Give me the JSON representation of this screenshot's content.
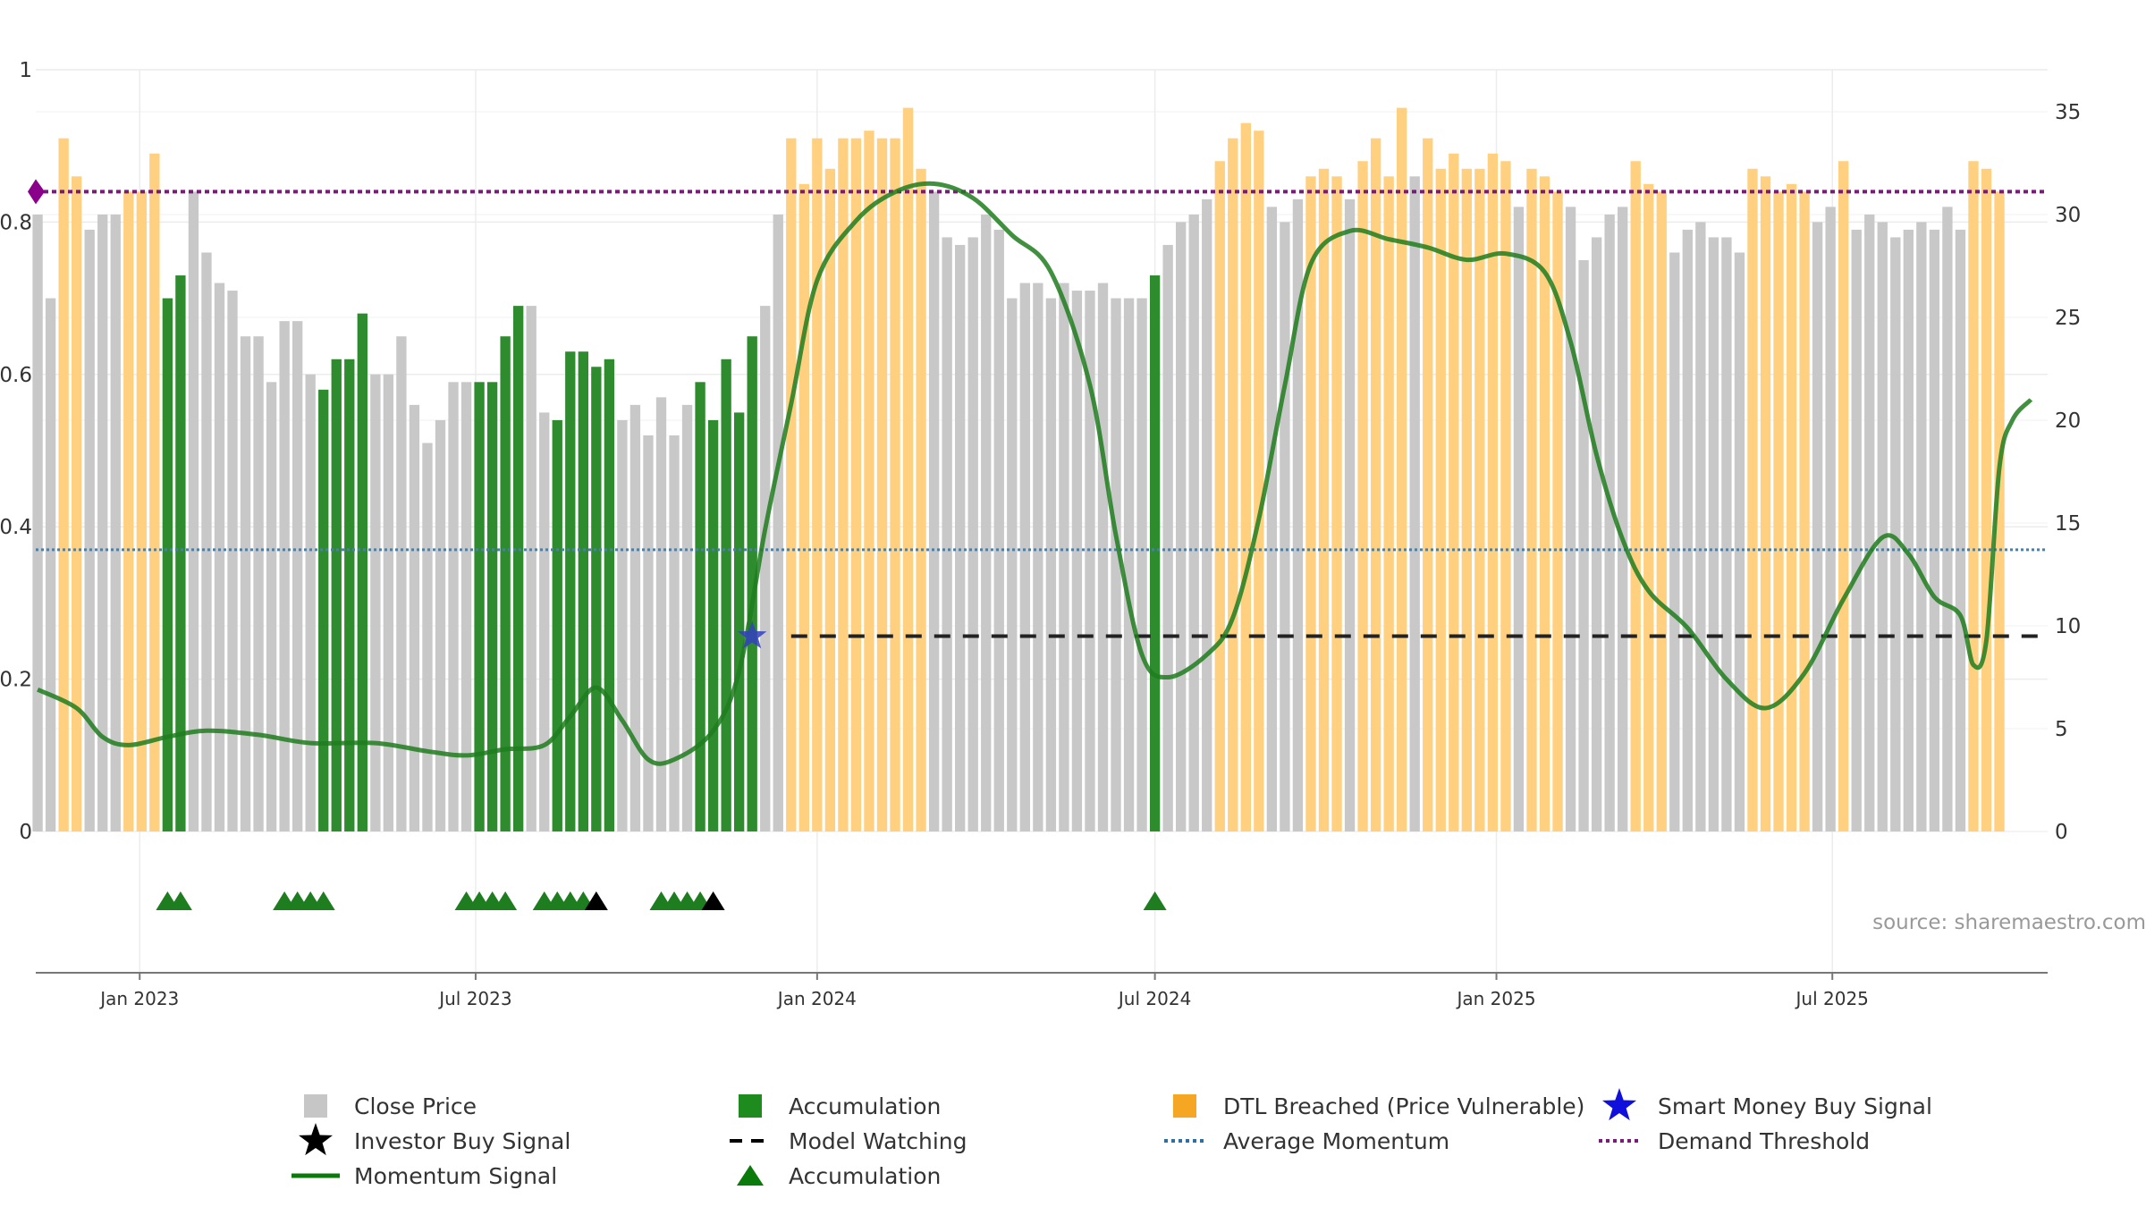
{
  "chart_data": {
    "type": "bar",
    "source_text": "source: sharemaestro.com",
    "left_axis": {
      "ylim": [
        0,
        1
      ],
      "ticks": [
        "0",
        "0.2",
        "0.4",
        "0.6",
        "0.8",
        "1"
      ],
      "values": [
        0,
        0.2,
        0.4,
        0.6,
        0.8,
        1
      ]
    },
    "right_axis": {
      "ylim": [
        0,
        35
      ],
      "ticks": [
        "0",
        "5",
        "10",
        "15",
        "20",
        "25",
        "30",
        "35"
      ],
      "values": [
        0,
        5,
        10,
        15,
        20,
        25,
        30,
        35
      ]
    },
    "x_axis": {
      "start": "2022-11-06",
      "end": "2025-10-25",
      "ticks": [
        {
          "date": "2023-01-01",
          "label": "Jan 2023"
        },
        {
          "date": "2023-07-01",
          "label": "Jul 2023"
        },
        {
          "date": "2024-01-01",
          "label": "Jan 2024"
        },
        {
          "date": "2024-07-01",
          "label": "Jul 2024"
        },
        {
          "date": "2025-01-01",
          "label": "Jan 2025"
        },
        {
          "date": "2025-07-01",
          "label": "Jul 2025"
        }
      ]
    },
    "bars": {
      "first_week": "2022-11-07",
      "values": [
        0.81,
        0.7,
        0.91,
        0.86,
        0.79,
        0.81,
        0.81,
        0.84,
        0.84,
        0.89,
        0.7,
        0.73,
        0.84,
        0.76,
        0.72,
        0.71,
        0.65,
        0.65,
        0.59,
        0.67,
        0.67,
        0.6,
        0.58,
        0.62,
        0.62,
        0.68,
        0.6,
        0.6,
        0.65,
        0.56,
        0.51,
        0.54,
        0.59,
        0.59,
        0.59,
        0.59,
        0.65,
        0.69,
        0.69,
        0.55,
        0.54,
        0.63,
        0.63,
        0.61,
        0.62,
        0.54,
        0.56,
        0.52,
        0.57,
        0.52,
        0.56,
        0.59,
        0.54,
        0.62,
        0.55,
        0.65,
        0.69,
        0.81,
        0.91,
        0.85,
        0.91,
        0.87,
        0.91,
        0.91,
        0.92,
        0.91,
        0.91,
        0.95,
        0.87,
        0.84,
        0.78,
        0.77,
        0.78,
        0.81,
        0.79,
        0.7,
        0.72,
        0.72,
        0.7,
        0.72,
        0.71,
        0.71,
        0.72,
        0.7,
        0.7,
        0.7,
        0.73,
        0.77,
        0.8,
        0.81,
        0.83,
        0.88,
        0.91,
        0.93,
        0.92,
        0.82,
        0.8,
        0.83,
        0.86,
        0.87,
        0.86,
        0.83,
        0.88,
        0.91,
        0.86,
        0.95,
        0.86,
        0.91,
        0.87,
        0.89,
        0.87,
        0.87,
        0.89,
        0.88,
        0.82,
        0.87,
        0.86,
        0.84,
        0.82,
        0.75,
        0.78,
        0.81,
        0.82,
        0.88,
        0.85,
        0.84,
        0.76,
        0.79,
        0.8,
        0.78,
        0.78,
        0.76,
        0.87,
        0.86,
        0.84,
        0.85,
        0.84,
        0.8,
        0.82,
        0.88,
        0.79,
        0.81,
        0.8,
        0.78,
        0.79,
        0.8,
        0.79,
        0.82,
        0.79,
        0.88,
        0.87,
        0.84
      ],
      "signals": [
        "g",
        "g",
        "o",
        "o",
        "g",
        "g",
        "g",
        "o",
        "o",
        "o",
        "a",
        "a",
        "g",
        "g",
        "g",
        "g",
        "g",
        "g",
        "g",
        "g",
        "g",
        "g",
        "a",
        "a",
        "a",
        "a",
        "g",
        "g",
        "g",
        "g",
        "g",
        "g",
        "g",
        "g",
        "a",
        "a",
        "a",
        "a",
        "g",
        "g",
        "a",
        "a",
        "a",
        "a",
        "a",
        "g",
        "g",
        "g",
        "g",
        "g",
        "g",
        "a",
        "a",
        "a",
        "a",
        "a",
        "g",
        "g",
        "o",
        "o",
        "o",
        "o",
        "o",
        "o",
        "o",
        "o",
        "o",
        "o",
        "o",
        "g",
        "g",
        "g",
        "g",
        "g",
        "g",
        "g",
        "g",
        "g",
        "g",
        "g",
        "g",
        "g",
        "g",
        "g",
        "g",
        "g",
        "a",
        "g",
        "g",
        "g",
        "g",
        "o",
        "o",
        "o",
        "o",
        "g",
        "g",
        "g",
        "o",
        "o",
        "o",
        "g",
        "o",
        "o",
        "o",
        "o",
        "g",
        "o",
        "o",
        "o",
        "o",
        "o",
        "o",
        "o",
        "g",
        "o",
        "o",
        "o",
        "g",
        "g",
        "g",
        "g",
        "g",
        "o",
        "o",
        "o",
        "g",
        "g",
        "g",
        "g",
        "g",
        "g",
        "o",
        "o",
        "o",
        "o",
        "o",
        "g",
        "g",
        "o",
        "g",
        "g",
        "g",
        "g",
        "g",
        "g",
        "g",
        "g",
        "g",
        "o",
        "o",
        "o"
      ]
    },
    "momentum_signal": {
      "points": [
        [
          "2022-11-07",
          6.9
        ],
        [
          "2022-11-28",
          6.0
        ],
        [
          "2022-12-12",
          4.6
        ],
        [
          "2022-12-26",
          4.2
        ],
        [
          "2023-01-16",
          4.6
        ],
        [
          "2023-02-06",
          4.9
        ],
        [
          "2023-03-06",
          4.7
        ],
        [
          "2023-04-03",
          4.3
        ],
        [
          "2023-05-08",
          4.3
        ],
        [
          "2023-06-05",
          3.9
        ],
        [
          "2023-06-26",
          3.7
        ],
        [
          "2023-07-17",
          4.0
        ],
        [
          "2023-08-07",
          4.2
        ],
        [
          "2023-08-21",
          5.6
        ],
        [
          "2023-09-04",
          7.0
        ],
        [
          "2023-09-18",
          5.4
        ],
        [
          "2023-10-02",
          3.5
        ],
        [
          "2023-10-16",
          3.5
        ],
        [
          "2023-11-06",
          4.9
        ],
        [
          "2023-11-20",
          7.8
        ],
        [
          "2023-12-04",
          14.7
        ],
        [
          "2023-12-18",
          20.8
        ],
        [
          "2024-01-01",
          26.8
        ],
        [
          "2024-01-22",
          29.7
        ],
        [
          "2024-02-12",
          31.1
        ],
        [
          "2024-03-04",
          31.5
        ],
        [
          "2024-03-25",
          30.8
        ],
        [
          "2024-04-15",
          29.0
        ],
        [
          "2024-05-06",
          27.2
        ],
        [
          "2024-05-27",
          21.7
        ],
        [
          "2024-06-10",
          14.4
        ],
        [
          "2024-06-24",
          8.6
        ],
        [
          "2024-07-08",
          7.5
        ],
        [
          "2024-07-29",
          8.6
        ],
        [
          "2024-08-12",
          10.4
        ],
        [
          "2024-08-26",
          15.2
        ],
        [
          "2024-09-09",
          21.7
        ],
        [
          "2024-09-23",
          27.6
        ],
        [
          "2024-10-14",
          29.2
        ],
        [
          "2024-11-04",
          28.8
        ],
        [
          "2024-11-25",
          28.4
        ],
        [
          "2024-12-16",
          27.8
        ],
        [
          "2025-01-06",
          28.1
        ],
        [
          "2025-01-27",
          27.2
        ],
        [
          "2025-02-10",
          23.8
        ],
        [
          "2025-02-24",
          18.3
        ],
        [
          "2025-03-10",
          14.2
        ],
        [
          "2025-03-24",
          11.7
        ],
        [
          "2025-04-14",
          9.9
        ],
        [
          "2025-05-05",
          7.4
        ],
        [
          "2025-05-26",
          6.0
        ],
        [
          "2025-06-16",
          7.7
        ],
        [
          "2025-07-07",
          11.3
        ],
        [
          "2025-07-28",
          14.3
        ],
        [
          "2025-08-11",
          13.5
        ],
        [
          "2025-08-25",
          11.4
        ],
        [
          "2025-09-08",
          10.5
        ],
        [
          "2025-09-15",
          8.1
        ],
        [
          "2025-09-22",
          9.3
        ],
        [
          "2025-09-29",
          17.7
        ],
        [
          "2025-10-06",
          20.0
        ],
        [
          "2025-10-16",
          21.0
        ]
      ],
      "color": "#1e7d1e"
    },
    "average_momentum": {
      "value": 13.7,
      "axis": "right",
      "color": "#4a7fa8"
    },
    "demand_threshold": {
      "value": 0.84,
      "axis": "left",
      "color": "#7a1a7a"
    },
    "model_watching": {
      "value": 9.5,
      "axis": "right",
      "start": "2023-12-18",
      "end": "2025-10-20",
      "color": "#222222"
    },
    "smart_money_buy_signal": {
      "date": "2023-11-27",
      "value": 9.5,
      "color": "#3340c0"
    },
    "accumulation_markers": {
      "green": [
        "2023-01-16",
        "2023-01-23",
        "2023-03-20",
        "2023-03-27",
        "2023-04-03",
        "2023-04-10",
        "2023-06-26",
        "2023-07-03",
        "2023-07-10",
        "2023-07-17",
        "2023-08-07",
        "2023-08-14",
        "2023-08-21",
        "2023-08-28",
        "2023-10-09",
        "2023-10-16",
        "2023-10-23",
        "2023-10-30",
        "2024-07-01"
      ],
      "black": [
        "2023-09-04",
        "2023-11-06"
      ]
    },
    "colors": {
      "close_price": "#c8c8c8",
      "accumulation": "#2e8b2e",
      "dtl_breached": "#ffd080",
      "marker_green": "#1e7d1e"
    },
    "legend": [
      {
        "label": "Close Price",
        "symbol": "square",
        "color": "#c0c0c0"
      },
      {
        "label": "Accumulation",
        "symbol": "square",
        "color": "#1e8b1e"
      },
      {
        "label": "DTL Breached (Price Vulnerable)",
        "symbol": "square",
        "color": "#f5a623"
      },
      {
        "label": "Smart Money Buy Signal",
        "symbol": "star",
        "color": "#1010dd"
      },
      {
        "label": "Investor Buy Signal",
        "symbol": "star",
        "color": "#000000"
      },
      {
        "label": "Model Watching",
        "symbol": "dash",
        "color": "#000000"
      },
      {
        "label": "Average Momentum",
        "symbol": "dot",
        "color": "#2e6fa3"
      },
      {
        "label": "Demand Threshold",
        "symbol": "dot",
        "color": "#7a1a7a"
      },
      {
        "label": "Momentum Signal",
        "symbol": "line",
        "color": "#0a7a0a"
      },
      {
        "label": "Accumulation",
        "symbol": "triangle",
        "color": "#0a7a0a"
      }
    ]
  }
}
